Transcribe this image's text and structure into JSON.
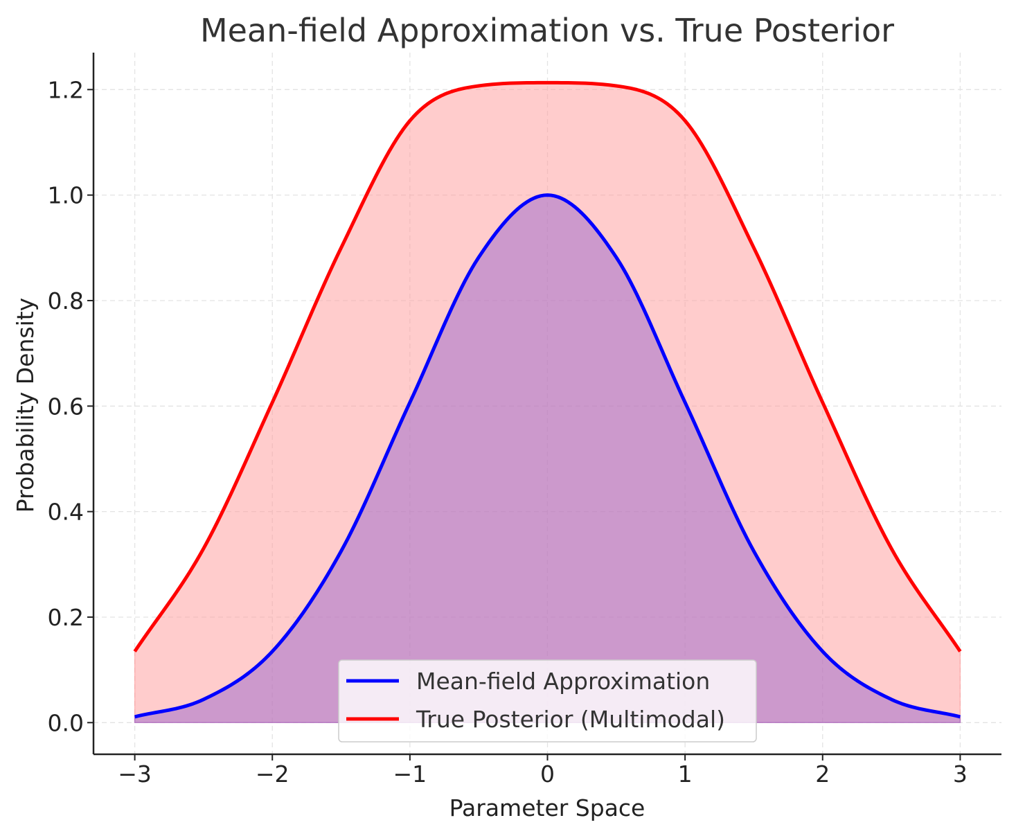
{
  "chart_data": {
    "type": "area",
    "title": "Mean-field Approximation vs. True Posterior",
    "xlabel": "Parameter Space",
    "ylabel": "Probability Density",
    "xlim": [
      -3.3,
      3.3
    ],
    "ylim": [
      -0.06,
      1.27
    ],
    "grid": true,
    "legend_position": "bottom-center",
    "x_ticks": [
      -3,
      -2,
      -1,
      0,
      1,
      2,
      3
    ],
    "x_tick_labels": [
      "−3",
      "−2",
      "−1",
      "0",
      "1",
      "2",
      "3"
    ],
    "y_ticks": [
      0.0,
      0.2,
      0.4,
      0.6,
      0.8,
      1.0,
      1.2
    ],
    "y_tick_labels": [
      "0.0",
      "0.2",
      "0.4",
      "0.6",
      "0.8",
      "1.0",
      "1.2"
    ],
    "x": [
      -3.0,
      -2.5,
      -2.0,
      -1.5,
      -1.0,
      -0.5,
      0.0,
      0.5,
      1.0,
      1.5,
      2.0,
      2.5,
      3.0
    ],
    "series": [
      {
        "name": "Mean-field Approximation",
        "color": "#0000ff",
        "fill_color": "#9966cc",
        "values": [
          0.011,
          0.044,
          0.135,
          0.325,
          0.607,
          0.882,
          1.0,
          0.882,
          0.607,
          0.325,
          0.135,
          0.044,
          0.011
        ]
      },
      {
        "name": "True Posterior (Multimodal)",
        "color": "#ff0000",
        "fill_color": "#ff9999",
        "values": [
          0.135,
          0.33,
          0.607,
          0.9,
          1.141,
          1.207,
          1.213,
          1.207,
          1.141,
          0.9,
          0.607,
          0.33,
          0.135
        ]
      }
    ]
  }
}
